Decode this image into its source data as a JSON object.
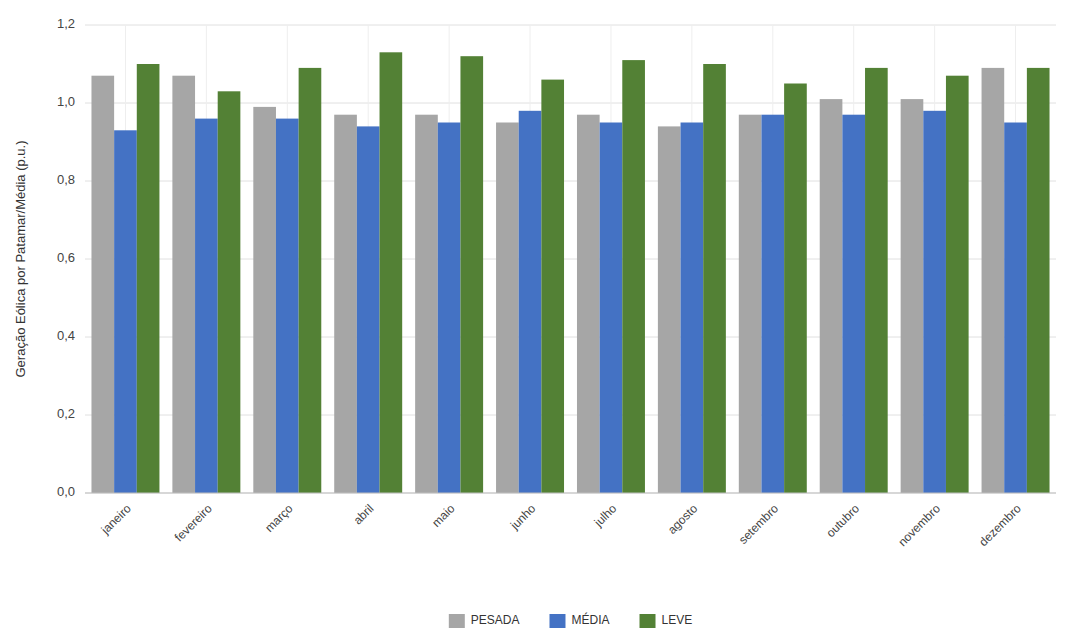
{
  "chart_data": {
    "type": "bar",
    "categories": [
      "janeiro",
      "fevereiro",
      "março",
      "abril",
      "maio",
      "junho",
      "julho",
      "agosto",
      "setembro",
      "outubro",
      "novembro",
      "dezembro"
    ],
    "series": [
      {
        "name": "PESADA",
        "color": "#a6a6a6",
        "values": [
          1.07,
          1.07,
          0.99,
          0.97,
          0.97,
          0.95,
          0.97,
          0.94,
          0.97,
          1.01,
          1.01,
          1.09
        ]
      },
      {
        "name": "MÉDIA",
        "color": "#4472c4",
        "values": [
          0.93,
          0.96,
          0.96,
          0.94,
          0.95,
          0.98,
          0.95,
          0.95,
          0.97,
          0.97,
          0.98,
          0.95
        ]
      },
      {
        "name": "LEVE",
        "color": "#538135",
        "values": [
          1.1,
          1.03,
          1.09,
          1.13,
          1.12,
          1.06,
          1.11,
          1.1,
          1.05,
          1.09,
          1.07,
          1.09
        ]
      }
    ],
    "y_label": "Geração Eólica por Patamar/Média (p.u.)",
    "ylim": [
      0.0,
      1.2
    ],
    "yticks": [
      {
        "value": 0.0,
        "label": "0,0"
      },
      {
        "value": 0.2,
        "label": "0,2"
      },
      {
        "value": 0.4,
        "label": "0,4"
      },
      {
        "value": 0.6,
        "label": "0,6"
      },
      {
        "value": 0.8,
        "label": "0,8"
      },
      {
        "value": 1.0,
        "label": "1,0"
      },
      {
        "value": 1.2,
        "label": "1,2"
      }
    ],
    "grid": true,
    "legend": "bottom"
  }
}
